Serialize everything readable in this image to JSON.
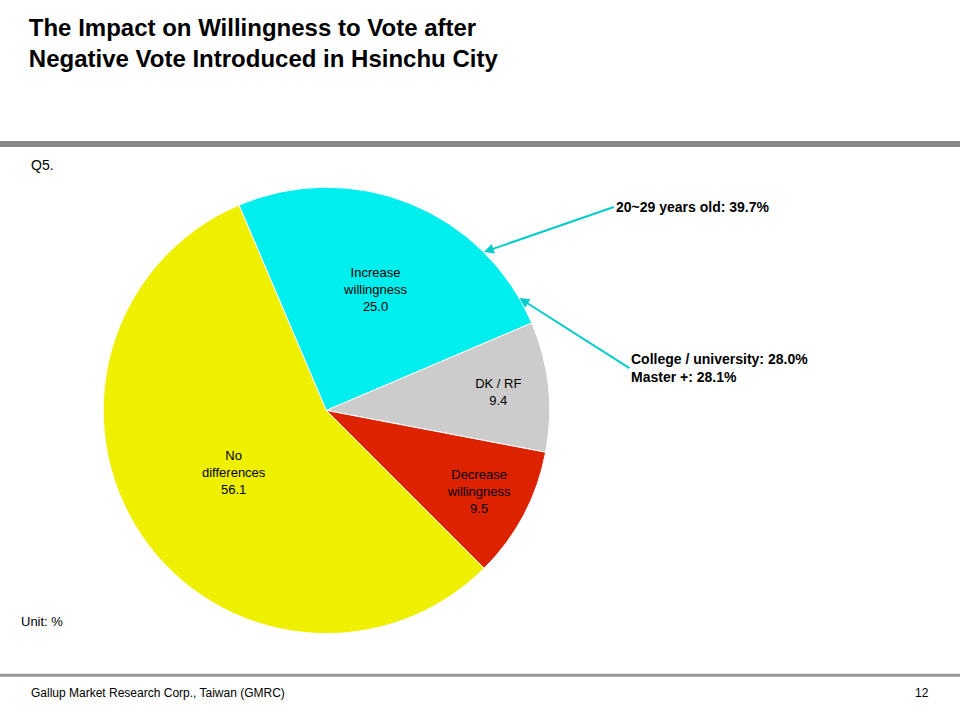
{
  "chart_data": {
    "type": "pie",
    "title": "The Impact on Willingness to Vote after\nNegative Vote Introduced in Hsinchu City",
    "subtitle": "Q5.",
    "categories": [
      "No\ndifferences",
      "Increase\nwillingness",
      "DK / RF",
      "Decrease\nwillingness"
    ],
    "values": [
      56.1,
      25.0,
      9.4,
      9.5
    ],
    "value_labels": [
      "56.1",
      "25.0",
      "9.4",
      "9.5"
    ],
    "colors": [
      "#EFEF00",
      "#00EEEE",
      "#CCCCCC",
      "#DD2200"
    ],
    "data_labels": true,
    "annotations": [
      "20~29 years old: 39.7%",
      "College / university: 28.0%\nMaster +: 28.1%"
    ],
    "unit_label": "Unit: %",
    "footer": "Gallup Market Research Corp., Taiwan (GMRC)",
    "page_number": "12"
  }
}
